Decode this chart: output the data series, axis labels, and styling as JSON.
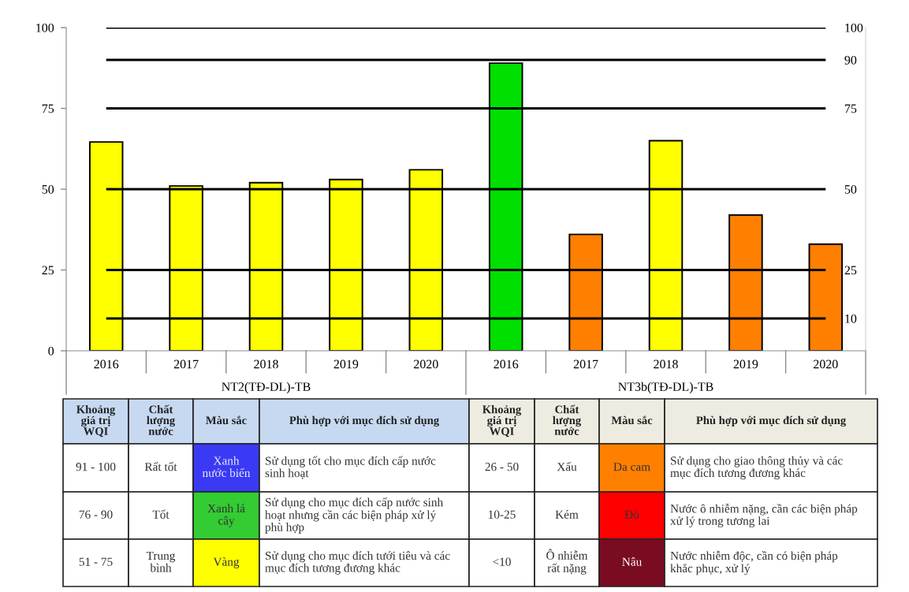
{
  "chart_data": {
    "type": "bar",
    "categories": [
      "2016",
      "2017",
      "2018",
      "2019",
      "2020",
      "2016",
      "2017",
      "2018",
      "2019",
      "2020"
    ],
    "series": [
      {
        "values": [
          64.6,
          51,
          52,
          53,
          56,
          89,
          36,
          65,
          42,
          33
        ],
        "colors": [
          "#ffff00",
          "#ffff00",
          "#ffff00",
          "#ffff00",
          "#ffff00",
          "#00e000",
          "#ff8000",
          "#ffff00",
          "#ff8000",
          "#ff8000"
        ]
      },
      {
        "type": "line",
        "color": "#000000",
        "values": [
          100,
          100,
          100,
          100,
          100,
          100,
          100,
          100,
          100,
          100
        ]
      },
      {
        "type": "line",
        "color": "#000000",
        "values": [
          90,
          90,
          90,
          90,
          90,
          90,
          90,
          90,
          90,
          90
        ]
      },
      {
        "type": "line",
        "color": "#000000",
        "values": [
          75,
          75,
          75,
          75,
          75,
          75,
          75,
          75,
          75,
          75
        ]
      },
      {
        "type": "line",
        "color": "#000000",
        "values": [
          50,
          50,
          50,
          50,
          50,
          50,
          50,
          50,
          50,
          50
        ]
      },
      {
        "type": "line",
        "color": "#000000",
        "values": [
          25,
          25,
          25,
          25,
          25,
          25,
          25,
          25,
          25,
          25
        ]
      },
      {
        "type": "line",
        "color": "#000000",
        "values": [
          10,
          10,
          10,
          10,
          10,
          10,
          10,
          10,
          10,
          10
        ]
      }
    ],
    "ylim": [
      0,
      100
    ],
    "yticks": [
      0,
      25,
      50,
      75,
      100
    ],
    "y2lim": [
      0,
      100
    ],
    "y2ticks": [
      10,
      25,
      50,
      75,
      90,
      100
    ],
    "annotations": [
      "NT2(TĐ-DL)-TB",
      "NT3b(TĐ-DL)-TB",
      "Khoảng\ngiá trị\nWQI",
      "Chất\nlượng\nnước",
      "Màu sắc",
      "Phù hợp với mục đích sử dụng",
      "Khoảng\ngiá trị\nWQI",
      "Chất\nlượng\nnước",
      "Màu sắc",
      "Phù hợp với mục đích sử dụng",
      "91 - 100",
      "Rất tốt",
      "Xanh\nnước biển",
      "Sử dụng tốt cho mục đích cấp nước\nsinh hoạt",
      "26 - 50",
      "Xấu",
      "Da cam",
      "Sử dụng cho giao thông thủy và các\nmục đích tương đương khác",
      "76 - 90",
      "Tốt",
      "Xanh lá\ncây",
      "Sử dụng cho mục đích cấp nước sinh\nhoạt nhưng cần các biện pháp xử lý\nphù hợp",
      "10-25",
      "Kém",
      "Đỏ",
      "Nước ô nhiễm nặng, cần các biện pháp\nxử lý trong tương lai",
      "51 - 75",
      "Trung\nbình",
      "Vàng",
      "Sử dụng cho mục đích tưới tiêu và các\nmục đích tương đương khác",
      "<10",
      "Ô nhiễm\nrất nặng",
      "Nâu",
      "Nước nhiễm độc, cần có biện pháp\nkhắc phục, xử lý"
    ]
  }
}
